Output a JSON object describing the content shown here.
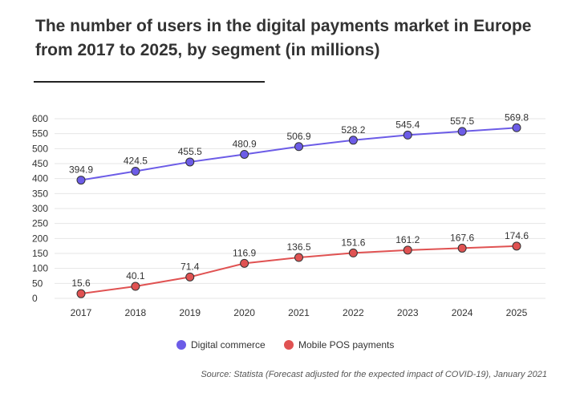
{
  "chart_data": {
    "type": "line",
    "title": "The number of users in the digital payments market in Europe from 2017 to 2025, by segment (in millions)",
    "categories": [
      "2017",
      "2018",
      "2019",
      "2020",
      "2021",
      "2022",
      "2023",
      "2024",
      "2025"
    ],
    "series": [
      {
        "name": "Digital commerce",
        "color": "#6c5ce7",
        "values": [
          394.9,
          424.5,
          455.5,
          480.9,
          506.9,
          528.2,
          545.4,
          557.5,
          569.8
        ]
      },
      {
        "name": "Mobile POS payments",
        "color": "#e05252",
        "values": [
          15.6,
          40.1,
          71.4,
          116.9,
          136.5,
          151.6,
          161.2,
          167.6,
          174.6
        ]
      }
    ],
    "yticks": [
      "0",
      "50",
      "100",
      "150",
      "200",
      "250",
      "300",
      "350",
      "400",
      "450",
      "500",
      "550",
      "600"
    ],
    "ylim": [
      0,
      600
    ],
    "grid": true,
    "legend_position": "bottom-center",
    "source": "Source: Statista (Forecast adjusted for the expected impact of COVID-19), January 2021"
  }
}
